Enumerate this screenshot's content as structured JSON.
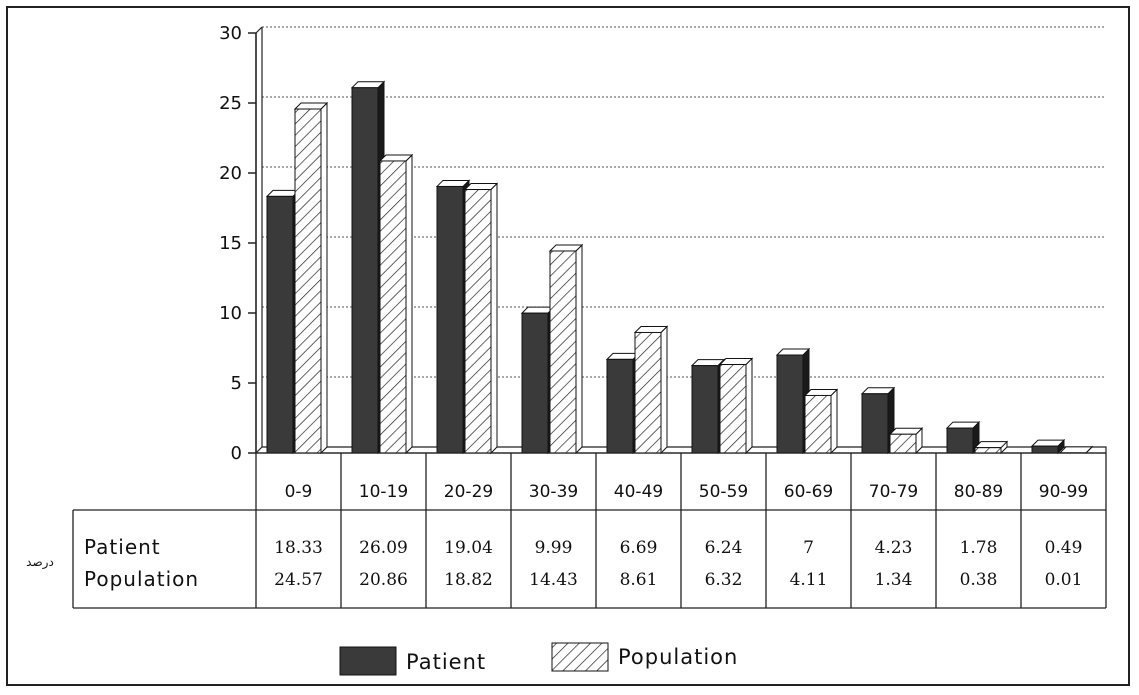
{
  "chart_data": {
    "type": "bar",
    "categories": [
      "0-9",
      "10-19",
      "20-29",
      "30-39",
      "40-49",
      "50-59",
      "60-69",
      "70-79",
      "80-89",
      "90-99"
    ],
    "series": [
      {
        "name": "Patient",
        "values": [
          18.33,
          26.09,
          19.04,
          9.99,
          6.69,
          6.24,
          7,
          4.23,
          1.78,
          0.49
        ],
        "color": "#3a3a3a",
        "pattern": "solid"
      },
      {
        "name": "Population",
        "values": [
          24.57,
          20.86,
          18.82,
          14.43,
          8.61,
          6.32,
          4.11,
          1.34,
          0.38,
          0.01
        ],
        "color": "#ffffff",
        "pattern": "hatched"
      }
    ],
    "table_values": {
      "Patient": [
        "18.33",
        "26.09",
        "19.04",
        "9.99",
        "6.69",
        "6.24",
        "7",
        "4.23",
        "1.78",
        "0.49"
      ],
      "Population": [
        "24.57",
        "20.86",
        "18.82",
        "14.43",
        "8.61",
        "6.32",
        "4.11",
        "1.34",
        "0.38",
        "0.01"
      ]
    },
    "ylim": [
      0,
      30
    ],
    "yticks": [
      0,
      5,
      10,
      15,
      20,
      25,
      30
    ],
    "grid": true,
    "legend_position": "bottom-center",
    "side_label": "درصد"
  }
}
